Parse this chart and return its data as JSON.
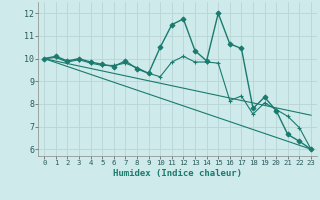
{
  "xlabel": "Humidex (Indice chaleur)",
  "ylabel": "",
  "xlim": [
    -0.5,
    23.5
  ],
  "ylim": [
    5.7,
    12.5
  ],
  "yticks": [
    6,
    7,
    8,
    9,
    10,
    11,
    12
  ],
  "xticks": [
    0,
    1,
    2,
    3,
    4,
    5,
    6,
    7,
    8,
    9,
    10,
    11,
    12,
    13,
    14,
    15,
    16,
    17,
    18,
    19,
    20,
    21,
    22,
    23
  ],
  "bg_color": "#ceeaea",
  "grid_color": "#b8d4d4",
  "line_color": "#1a7a6e",
  "series": [
    {
      "x": [
        0,
        1,
        2,
        3,
        4,
        5,
        6,
        7,
        8,
        9,
        10,
        11,
        12,
        13,
        14,
        15,
        16,
        17,
        18,
        19,
        20,
        21,
        22,
        23
      ],
      "y": [
        10.0,
        10.1,
        9.9,
        10.0,
        9.85,
        9.75,
        9.65,
        9.9,
        9.55,
        9.35,
        10.5,
        11.5,
        11.75,
        10.35,
        9.9,
        12.0,
        10.65,
        10.45,
        7.8,
        8.3,
        7.7,
        6.65,
        6.35,
        6.0
      ],
      "marker": "D",
      "linestyle": "-",
      "markersize": 2.5,
      "linewidth": 1.0
    },
    {
      "x": [
        0,
        1,
        2,
        3,
        4,
        5,
        6,
        7,
        8,
        9,
        10,
        11,
        12,
        13,
        14,
        15,
        16,
        17,
        18,
        19,
        20,
        21,
        22,
        23
      ],
      "y": [
        10.0,
        10.05,
        9.85,
        9.95,
        9.8,
        9.7,
        9.7,
        9.8,
        9.6,
        9.35,
        9.2,
        9.85,
        10.1,
        9.85,
        9.85,
        9.8,
        8.15,
        8.35,
        7.55,
        8.05,
        7.75,
        7.45,
        6.95,
        6.0
      ],
      "marker": "+",
      "linestyle": "-",
      "markersize": 3.5,
      "linewidth": 0.8
    },
    {
      "x": [
        0,
        23
      ],
      "y": [
        10.0,
        6.0
      ],
      "marker": null,
      "linestyle": "-",
      "markersize": 0,
      "linewidth": 0.8
    },
    {
      "x": [
        0,
        23
      ],
      "y": [
        10.0,
        7.5
      ],
      "marker": null,
      "linestyle": "-",
      "markersize": 0,
      "linewidth": 0.8
    }
  ]
}
